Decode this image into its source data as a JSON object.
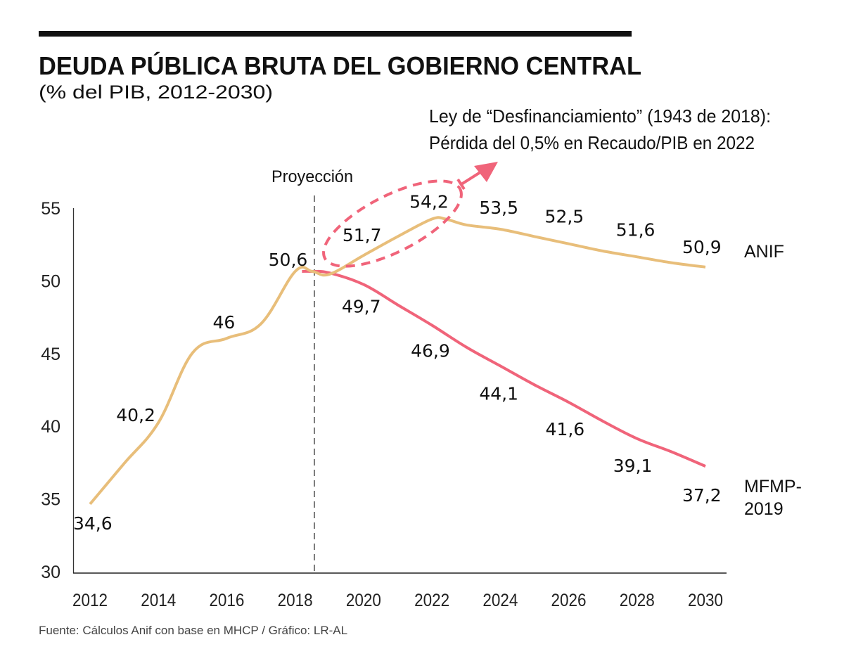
{
  "header": {
    "title": "DEUDA PÚBLICA BRUTA DEL GOBIERNO CENTRAL",
    "subtitle": "(% del PIB, 2012-2030)"
  },
  "annotation": {
    "line1": "Ley de “Desfinanciamiento” (1943 de 2018):",
    "line2": "Pérdida del 0,5% en Recaudo/PIB en 2022",
    "color": "#F0647A"
  },
  "projection_label": "Proyección",
  "source": "Fuente: Cálculos Anif con base en MHCP / Gráfico: LR-AL",
  "chart_data": {
    "type": "line",
    "title": "DEUDA PÚBLICA BRUTA DEL GOBIERNO CENTRAL",
    "subtitle": "(% del PIB, 2012-2030)",
    "xlabel": "",
    "ylabel": "% del PIB",
    "xlim": [
      2012,
      2030
    ],
    "ylim": [
      30,
      55
    ],
    "grid": false,
    "x_ticks": [
      "2012",
      "2014",
      "2016",
      "2018",
      "2020",
      "2022",
      "2024",
      "2026",
      "2028",
      "2030"
    ],
    "x_tick_values": [
      2012,
      2014,
      2016,
      2018,
      2020,
      2022,
      2024,
      2026,
      2028,
      2030
    ],
    "y_ticks": [
      "30",
      "35",
      "40",
      "45",
      "50",
      "55"
    ],
    "y_tick_values": [
      30,
      35,
      40,
      45,
      50,
      55
    ],
    "projection_start": 2018.5,
    "legend": "inline-right",
    "series": [
      {
        "name": "ANIF",
        "color": "#E8BE7A",
        "x": [
          2012,
          2013,
          2014,
          2015,
          2016,
          2017,
          2018,
          2018.5,
          2019,
          2020,
          2021,
          2022,
          2022.4,
          2023,
          2024,
          2025,
          2026,
          2027,
          2028,
          2029,
          2030
        ],
        "y": [
          34.6,
          37.4,
          40.2,
          45.0,
          46.0,
          47.0,
          50.6,
          50.6,
          50.4,
          51.7,
          53.0,
          54.2,
          54.2,
          53.8,
          53.5,
          53.0,
          52.5,
          52.0,
          51.6,
          51.2,
          50.9
        ]
      },
      {
        "name": "MFMP-2019",
        "color": "#F0647A",
        "x": [
          2018.2,
          2018.5,
          2019,
          2020,
          2021,
          2022,
          2023,
          2024,
          2025,
          2026,
          2027,
          2028,
          2029,
          2030
        ],
        "y": [
          50.6,
          50.6,
          50.5,
          49.7,
          48.3,
          46.9,
          45.4,
          44.1,
          42.8,
          41.6,
          40.3,
          39.1,
          38.2,
          37.2
        ]
      }
    ],
    "data_labels": [
      {
        "series": "ANIF",
        "x": 2012,
        "y": 34.6,
        "text": "34,6"
      },
      {
        "series": "ANIF",
        "x": 2014,
        "y": 40.2,
        "text": "40,2"
      },
      {
        "series": "ANIF",
        "x": 2016,
        "y": 46.0,
        "text": "46"
      },
      {
        "series": "ANIF",
        "x": 2018,
        "y": 50.6,
        "text": "50,6"
      },
      {
        "series": "ANIF",
        "x": 2020,
        "y": 51.7,
        "text": "51,7"
      },
      {
        "series": "ANIF",
        "x": 2022,
        "y": 54.2,
        "text": "54,2"
      },
      {
        "series": "ANIF",
        "x": 2024,
        "y": 53.5,
        "text": "53,5"
      },
      {
        "series": "ANIF",
        "x": 2026,
        "y": 52.5,
        "text": "52,5"
      },
      {
        "series": "ANIF",
        "x": 2028,
        "y": 51.6,
        "text": "51,6"
      },
      {
        "series": "ANIF",
        "x": 2030,
        "y": 50.9,
        "text": "50,9"
      },
      {
        "series": "MFMP-2019",
        "x": 2020,
        "y": 49.7,
        "text": "49,7"
      },
      {
        "series": "MFMP-2019",
        "x": 2022,
        "y": 46.9,
        "text": "46,9"
      },
      {
        "series": "MFMP-2019",
        "x": 2024,
        "y": 44.1,
        "text": "44,1"
      },
      {
        "series": "MFMP-2019",
        "x": 2026,
        "y": 41.6,
        "text": "41,6"
      },
      {
        "series": "MFMP-2019",
        "x": 2028,
        "y": 39.1,
        "text": "39,1"
      },
      {
        "series": "MFMP-2019",
        "x": 2030,
        "y": 37.2,
        "text": "37,2"
      }
    ],
    "series_labels": [
      {
        "series": "ANIF",
        "lines": [
          "ANIF"
        ]
      },
      {
        "series": "MFMP-2019",
        "lines": [
          "MFMP-",
          "2019"
        ]
      }
    ],
    "annotations": [
      "Ley de “Desfinanciamiento” (1943 de 2018): Pérdida del 0,5% en Recaudo/PIB en 2022",
      "Proyección"
    ]
  }
}
